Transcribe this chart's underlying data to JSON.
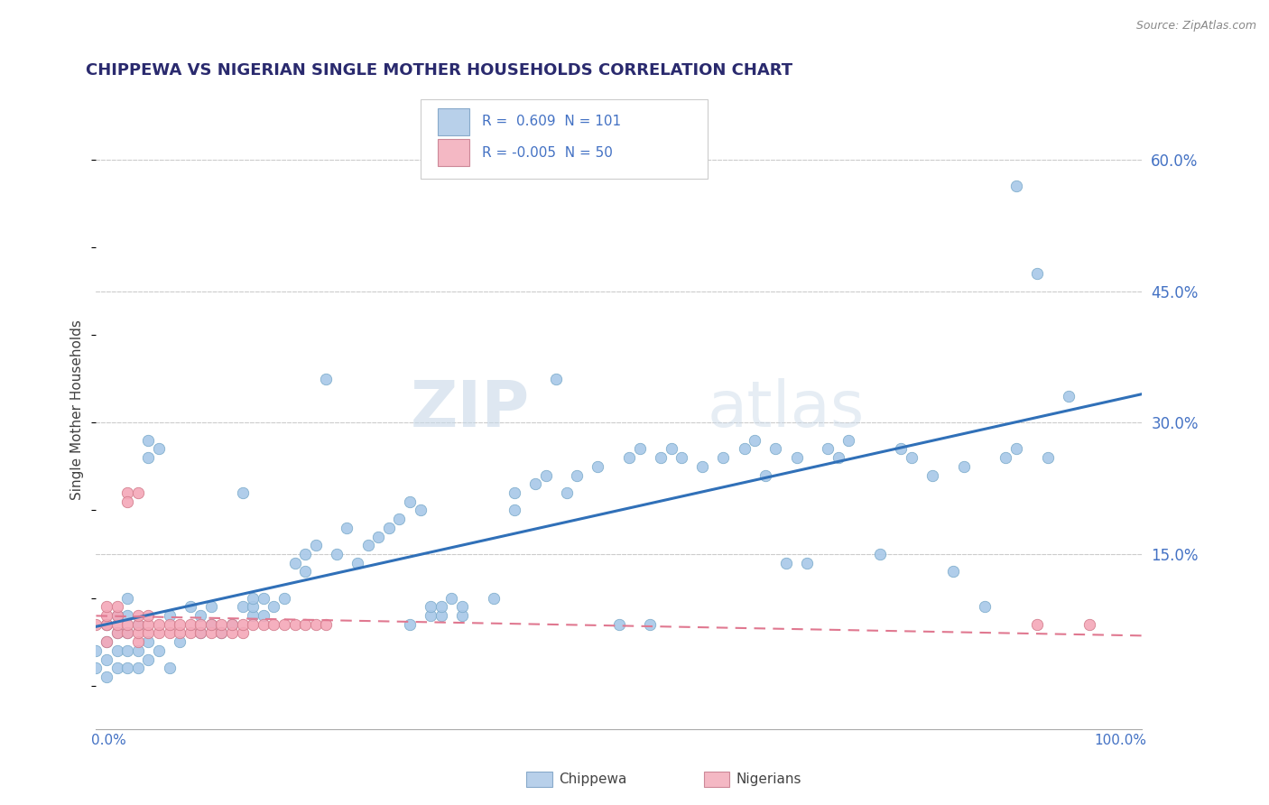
{
  "title": "CHIPPEWA VS NIGERIAN SINGLE MOTHER HOUSEHOLDS CORRELATION CHART",
  "source": "Source: ZipAtlas.com",
  "ylabel": "Single Mother Households",
  "ytick_values": [
    0.0,
    0.15,
    0.3,
    0.45,
    0.6
  ],
  "xlim": [
    0.0,
    1.0
  ],
  "ylim": [
    -0.05,
    0.68
  ],
  "chippewa_color": "#a8c8e8",
  "chippewa_edge": "#7aaaca",
  "nigerian_color": "#f4a8b8",
  "nigerian_edge": "#d07888",
  "chippewa_line_color": "#3070b8",
  "nigerian_line_color": "#e07890",
  "background_color": "#ffffff",
  "grid_color": "#cccccc",
  "watermark_color": "#d8e4f0",
  "title_color": "#2a2a6e",
  "tick_label_color": "#4472c4",
  "source_color": "#888888",
  "legend_box_color_1": "#b8d0ea",
  "legend_box_color_2": "#f4b8c4",
  "chippewa_points": [
    [
      0.0,
      0.02
    ],
    [
      0.0,
      0.04
    ],
    [
      0.01,
      0.01
    ],
    [
      0.01,
      0.03
    ],
    [
      0.01,
      0.05
    ],
    [
      0.01,
      0.07
    ],
    [
      0.02,
      0.02
    ],
    [
      0.02,
      0.04
    ],
    [
      0.02,
      0.06
    ],
    [
      0.02,
      0.08
    ],
    [
      0.03,
      0.02
    ],
    [
      0.03,
      0.04
    ],
    [
      0.03,
      0.06
    ],
    [
      0.03,
      0.08
    ],
    [
      0.03,
      0.1
    ],
    [
      0.04,
      0.02
    ],
    [
      0.04,
      0.04
    ],
    [
      0.04,
      0.07
    ],
    [
      0.05,
      0.03
    ],
    [
      0.05,
      0.05
    ],
    [
      0.05,
      0.26
    ],
    [
      0.05,
      0.28
    ],
    [
      0.06,
      0.04
    ],
    [
      0.06,
      0.27
    ],
    [
      0.07,
      0.02
    ],
    [
      0.07,
      0.08
    ],
    [
      0.08,
      0.05
    ],
    [
      0.09,
      0.09
    ],
    [
      0.1,
      0.06
    ],
    [
      0.1,
      0.08
    ],
    [
      0.11,
      0.07
    ],
    [
      0.11,
      0.09
    ],
    [
      0.12,
      0.06
    ],
    [
      0.13,
      0.07
    ],
    [
      0.14,
      0.09
    ],
    [
      0.14,
      0.22
    ],
    [
      0.15,
      0.08
    ],
    [
      0.15,
      0.09
    ],
    [
      0.15,
      0.1
    ],
    [
      0.16,
      0.08
    ],
    [
      0.16,
      0.1
    ],
    [
      0.17,
      0.09
    ],
    [
      0.18,
      0.1
    ],
    [
      0.19,
      0.14
    ],
    [
      0.2,
      0.13
    ],
    [
      0.2,
      0.15
    ],
    [
      0.21,
      0.16
    ],
    [
      0.22,
      0.35
    ],
    [
      0.23,
      0.15
    ],
    [
      0.24,
      0.18
    ],
    [
      0.25,
      0.14
    ],
    [
      0.26,
      0.16
    ],
    [
      0.27,
      0.17
    ],
    [
      0.28,
      0.18
    ],
    [
      0.29,
      0.19
    ],
    [
      0.3,
      0.07
    ],
    [
      0.3,
      0.21
    ],
    [
      0.31,
      0.2
    ],
    [
      0.32,
      0.08
    ],
    [
      0.32,
      0.09
    ],
    [
      0.33,
      0.08
    ],
    [
      0.33,
      0.09
    ],
    [
      0.34,
      0.1
    ],
    [
      0.35,
      0.08
    ],
    [
      0.35,
      0.09
    ],
    [
      0.38,
      0.1
    ],
    [
      0.4,
      0.2
    ],
    [
      0.4,
      0.22
    ],
    [
      0.42,
      0.23
    ],
    [
      0.43,
      0.24
    ],
    [
      0.44,
      0.35
    ],
    [
      0.45,
      0.22
    ],
    [
      0.46,
      0.24
    ],
    [
      0.48,
      0.25
    ],
    [
      0.5,
      0.07
    ],
    [
      0.51,
      0.26
    ],
    [
      0.52,
      0.27
    ],
    [
      0.53,
      0.07
    ],
    [
      0.54,
      0.26
    ],
    [
      0.55,
      0.27
    ],
    [
      0.56,
      0.26
    ],
    [
      0.58,
      0.25
    ],
    [
      0.6,
      0.26
    ],
    [
      0.62,
      0.27
    ],
    [
      0.63,
      0.28
    ],
    [
      0.64,
      0.24
    ],
    [
      0.65,
      0.27
    ],
    [
      0.66,
      0.14
    ],
    [
      0.67,
      0.26
    ],
    [
      0.68,
      0.14
    ],
    [
      0.7,
      0.27
    ],
    [
      0.71,
      0.26
    ],
    [
      0.72,
      0.28
    ],
    [
      0.75,
      0.15
    ],
    [
      0.77,
      0.27
    ],
    [
      0.78,
      0.26
    ],
    [
      0.8,
      0.24
    ],
    [
      0.82,
      0.13
    ],
    [
      0.83,
      0.25
    ],
    [
      0.85,
      0.09
    ],
    [
      0.87,
      0.26
    ],
    [
      0.88,
      0.27
    ],
    [
      0.88,
      0.57
    ],
    [
      0.9,
      0.47
    ],
    [
      0.91,
      0.26
    ],
    [
      0.93,
      0.33
    ]
  ],
  "nigerian_points": [
    [
      0.0,
      0.07
    ],
    [
      0.01,
      0.05
    ],
    [
      0.01,
      0.07
    ],
    [
      0.01,
      0.07
    ],
    [
      0.01,
      0.08
    ],
    [
      0.01,
      0.09
    ],
    [
      0.02,
      0.06
    ],
    [
      0.02,
      0.07
    ],
    [
      0.02,
      0.08
    ],
    [
      0.02,
      0.09
    ],
    [
      0.03,
      0.06
    ],
    [
      0.03,
      0.07
    ],
    [
      0.03,
      0.22
    ],
    [
      0.03,
      0.21
    ],
    [
      0.04,
      0.05
    ],
    [
      0.04,
      0.06
    ],
    [
      0.04,
      0.07
    ],
    [
      0.04,
      0.08
    ],
    [
      0.04,
      0.22
    ],
    [
      0.05,
      0.06
    ],
    [
      0.05,
      0.07
    ],
    [
      0.05,
      0.08
    ],
    [
      0.06,
      0.06
    ],
    [
      0.06,
      0.07
    ],
    [
      0.07,
      0.06
    ],
    [
      0.07,
      0.07
    ],
    [
      0.08,
      0.06
    ],
    [
      0.08,
      0.07
    ],
    [
      0.09,
      0.06
    ],
    [
      0.09,
      0.07
    ],
    [
      0.1,
      0.06
    ],
    [
      0.1,
      0.07
    ],
    [
      0.11,
      0.06
    ],
    [
      0.11,
      0.07
    ],
    [
      0.12,
      0.06
    ],
    [
      0.12,
      0.07
    ],
    [
      0.13,
      0.06
    ],
    [
      0.13,
      0.07
    ],
    [
      0.14,
      0.06
    ],
    [
      0.14,
      0.07
    ],
    [
      0.15,
      0.07
    ],
    [
      0.16,
      0.07
    ],
    [
      0.17,
      0.07
    ],
    [
      0.18,
      0.07
    ],
    [
      0.19,
      0.07
    ],
    [
      0.2,
      0.07
    ],
    [
      0.21,
      0.07
    ],
    [
      0.22,
      0.07
    ],
    [
      0.9,
      0.07
    ],
    [
      0.95,
      0.07
    ]
  ]
}
